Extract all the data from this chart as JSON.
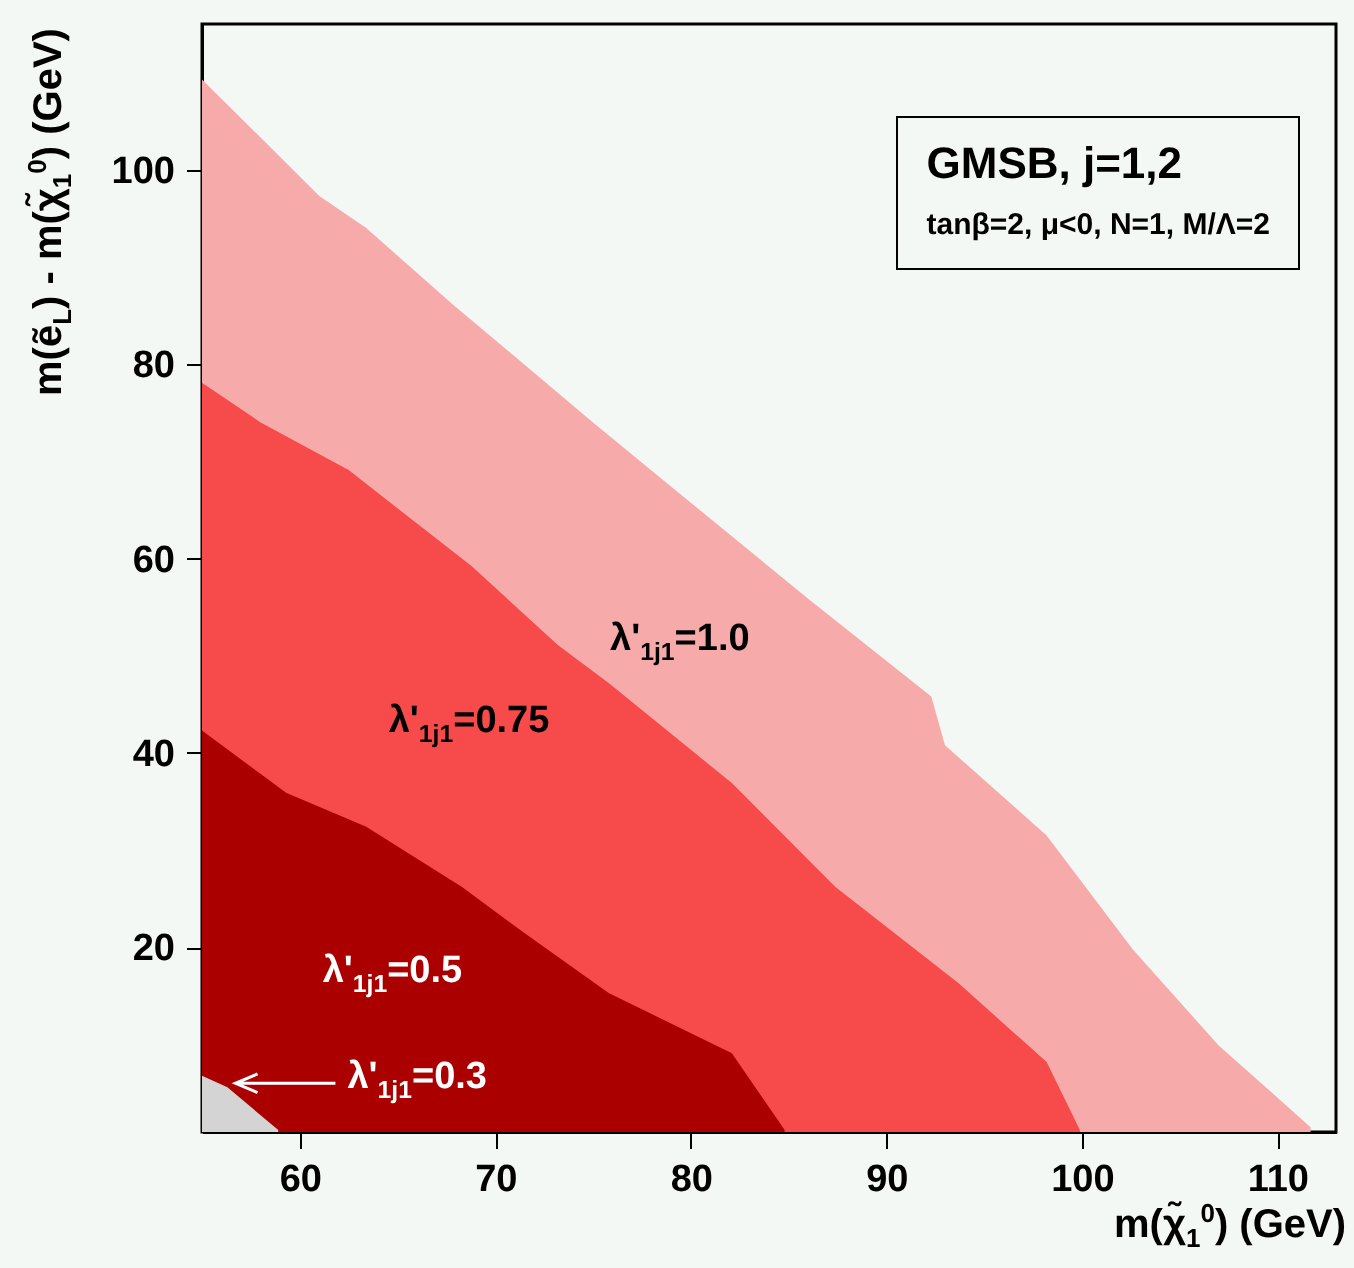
{
  "chart_data": {
    "type": "area",
    "xlabel": "m(χ̃$_{1}$$^{0}$) (GeV)",
    "ylabel": "m(ẽ$_{L}$) - m(χ̃$_{1}$$^{0}$) (GeV)",
    "annotations": [
      "GMSB, j=1,2",
      "tanβ=2, μ<0, N=1, M/Λ=2"
    ],
    "xlim": [
      55,
      113
    ],
    "ylim": [
      1,
      115
    ],
    "xticks": [
      60,
      70,
      80,
      90,
      100,
      110
    ],
    "yticks": [
      20,
      40,
      60,
      80,
      100
    ],
    "grid": false,
    "series": [
      {
        "name": "λ'$_{1j1}$=1.0",
        "color": "#f7aaaa",
        "x": [
          55,
          61,
          63.4,
          67.8,
          75,
          79,
          86.1,
          92.3,
          93,
          98.2,
          102.6,
          107,
          111.7
        ],
        "values": [
          109.3,
          97.3,
          94,
          86.2,
          74,
          67.4,
          55.7,
          45.8,
          40.8,
          31.5,
          19.8,
          9.9,
          1.5
        ]
      },
      {
        "name": "λ'$_{1j1}$=0.75",
        "color": "#f74a4a",
        "x": [
          55,
          58,
          62.5,
          68.8,
          73.2,
          75.8,
          82.1,
          87.4,
          93.7,
          98.2,
          99.9
        ],
        "values": [
          78.1,
          74,
          69.1,
          59.2,
          51.1,
          47.2,
          36.9,
          26.2,
          16.3,
          8.2,
          1.2
        ]
      },
      {
        "name": "λ'$_{1j1}$=0.5",
        "color": "#aa0000",
        "x": [
          55,
          59.3,
          63.4,
          68.3,
          71.4,
          75.8,
          82.1,
          84.8
        ],
        "values": [
          42.3,
          35.9,
          32.4,
          26.2,
          21.6,
          15.3,
          9.1,
          1.2
        ]
      },
      {
        "name": "λ'$_{1j1}$=0.3",
        "color": "#d4d4d4",
        "x": [
          55,
          56.3,
          58.9
        ],
        "values": [
          6.8,
          5.6,
          1.2
        ]
      }
    ]
  }
}
